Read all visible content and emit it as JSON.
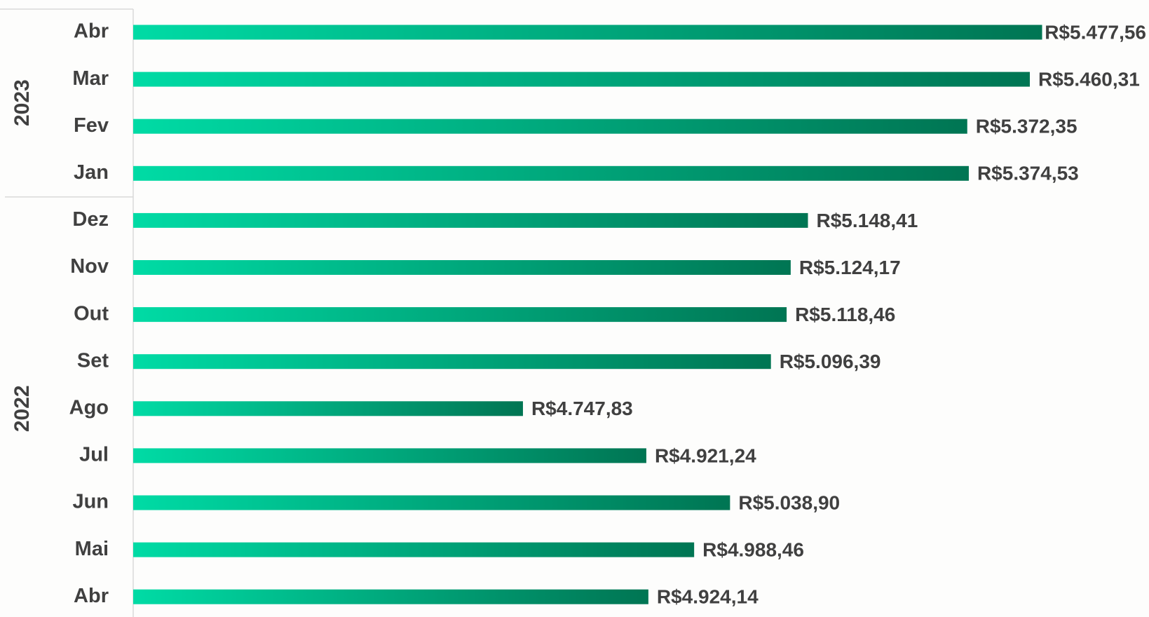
{
  "chart_data": {
    "type": "bar",
    "orientation": "horizontal",
    "color": [
      "#00dba5",
      "#007553"
    ],
    "xlim": [
      4200,
      5480
    ],
    "groups": [
      {
        "name": "2023",
        "categories": [
          "Abr",
          "Mar",
          "Fev",
          "Jan"
        ],
        "values": [
          5477.56,
          5460.31,
          5372.35,
          5374.53
        ],
        "value_labels": [
          "R$5.477,56",
          "R$5.460,31",
          "R$5.372,35",
          "R$5.374,53"
        ]
      },
      {
        "name": "2022",
        "categories": [
          "Dez",
          "Nov",
          "Out",
          "Set",
          "Ago",
          "Jul",
          "Jun",
          "Mai",
          "Abr"
        ],
        "values": [
          5148.41,
          5124.17,
          5118.46,
          5096.39,
          4747.83,
          4921.24,
          5038.9,
          4988.46,
          4924.14
        ],
        "value_labels": [
          "R$5.148,41",
          "R$5.124,17",
          "R$5.118,46",
          "R$5.096,39",
          "R$4.747,83",
          "R$4.921,24",
          "R$5.038,90",
          "R$4.988,46",
          "R$4.924,14"
        ]
      }
    ]
  }
}
